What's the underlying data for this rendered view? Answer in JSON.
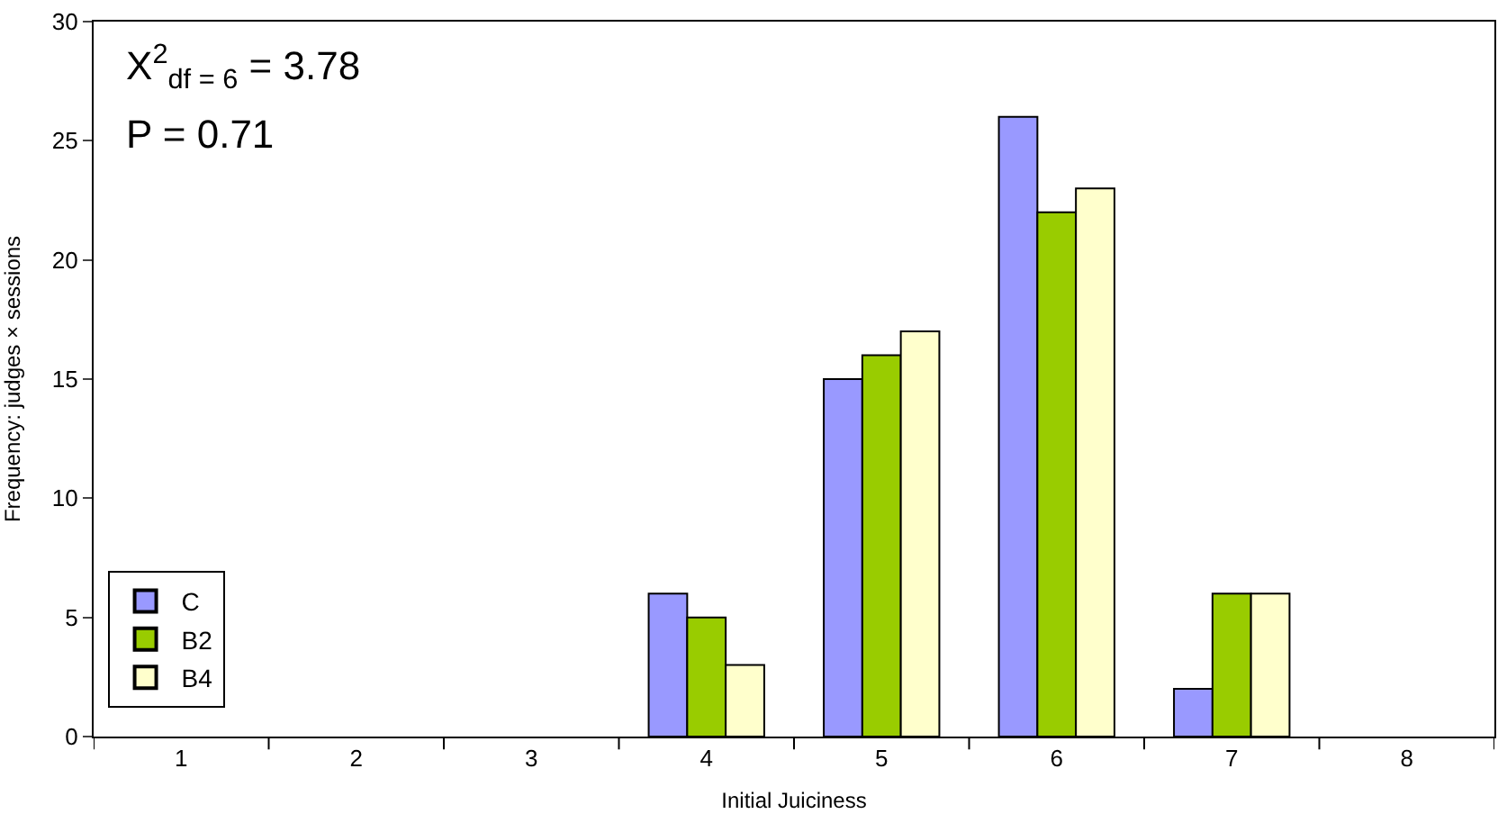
{
  "chart_data": {
    "type": "bar",
    "xlabel": "Initial Juiciness",
    "ylabel": "Frequency: judges × sessions",
    "categories": [
      "1",
      "2",
      "3",
      "4",
      "5",
      "6",
      "7",
      "8"
    ],
    "series": [
      {
        "name": "C",
        "color": "#9999ff",
        "values": [
          0,
          0,
          0,
          6,
          15,
          26,
          2,
          0
        ]
      },
      {
        "name": "B2",
        "color": "#99cc00",
        "values": [
          0,
          0,
          0,
          5,
          16,
          22,
          6,
          0
        ]
      },
      {
        "name": "B4",
        "color": "#ffffcc",
        "values": [
          0,
          0,
          0,
          3,
          17,
          23,
          6,
          0
        ]
      }
    ],
    "ylim": [
      0,
      30
    ],
    "yticks": [
      0,
      5,
      10,
      15,
      20,
      25,
      30
    ],
    "legend": "bottom left",
    "annotations": [
      "X$^{2}$$_{df = 6}$ = 3.78",
      "P = 0.71"
    ]
  }
}
